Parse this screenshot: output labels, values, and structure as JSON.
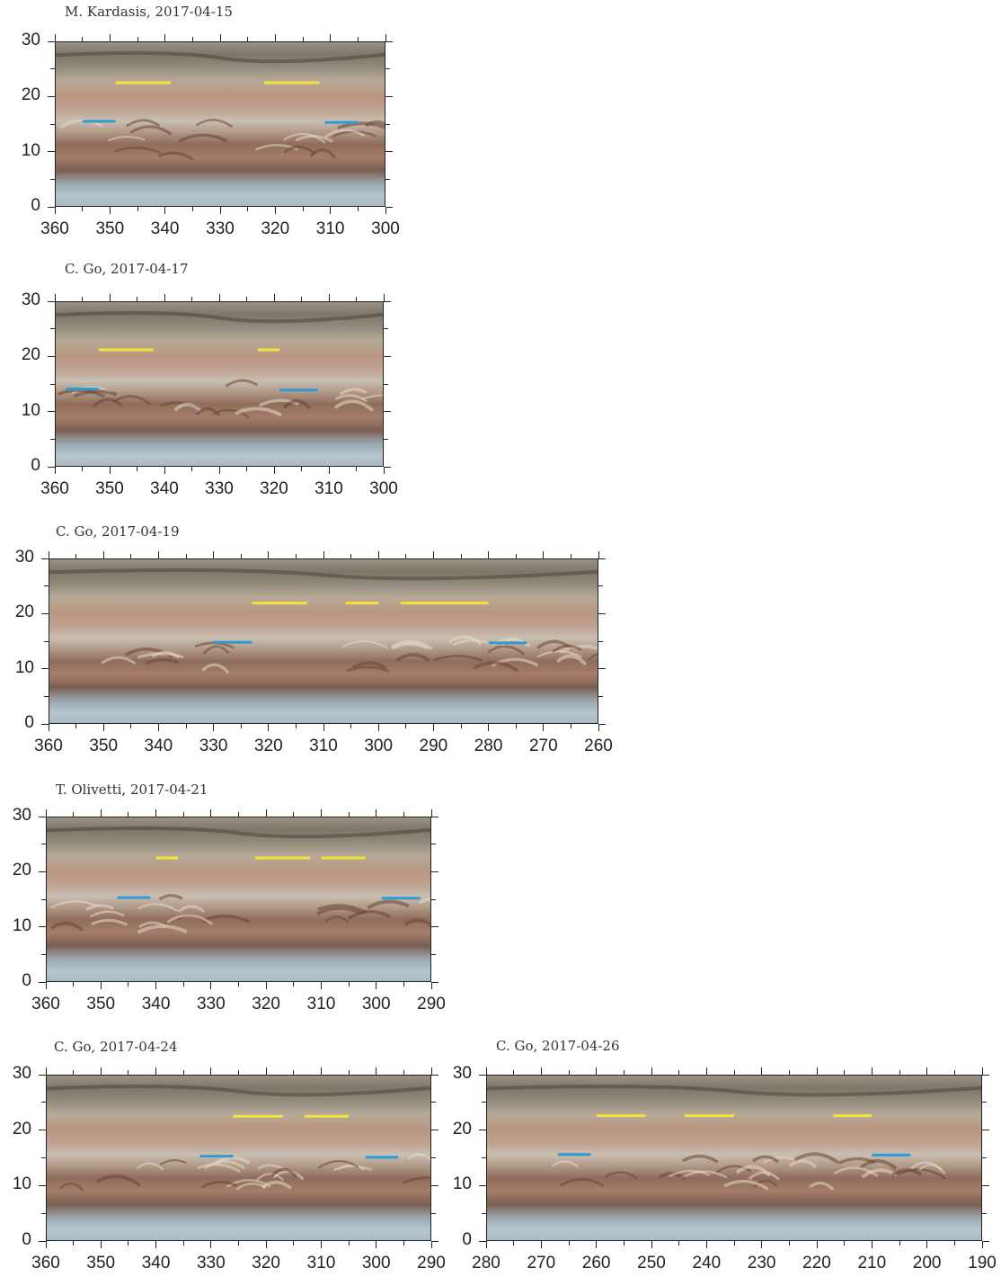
{
  "figure": {
    "panels": [
      {
        "title": "M. Kardasis, 2017-04-15",
        "xlim": [
          360,
          300
        ],
        "ylim": [
          0,
          30
        ],
        "xticks": [
          360,
          350,
          340,
          330,
          320,
          310,
          300
        ],
        "yticks": [
          0,
          10,
          20,
          30
        ],
        "yellow_segments": [
          [
            349,
            339,
            22.5
          ],
          [
            322,
            312,
            22.5
          ]
        ],
        "blue_segments": [
          [
            355,
            349,
            15.5
          ],
          [
            311,
            305,
            15.3
          ]
        ],
        "ribbon_features": true
      },
      {
        "title": "C. Go, 2017-04-17",
        "xlim": [
          360,
          300
        ],
        "ylim": [
          0,
          30
        ],
        "xticks": [
          360,
          350,
          340,
          330,
          320,
          310,
          300
        ],
        "yticks": [
          0,
          10,
          20,
          30
        ],
        "yellow_segments": [
          [
            352,
            342,
            21.2
          ],
          [
            323,
            319,
            21.2
          ]
        ],
        "blue_segments": [
          [
            358,
            352,
            14.1
          ],
          [
            319,
            312,
            13.9
          ]
        ],
        "ribbon_features": true
      },
      {
        "title": "C. Go, 2017-04-19",
        "xlim": [
          360,
          260
        ],
        "ylim": [
          0,
          30
        ],
        "xticks": [
          360,
          350,
          340,
          330,
          320,
          310,
          300,
          290,
          280,
          270,
          260
        ],
        "yticks": [
          0,
          10,
          20,
          30
        ],
        "yellow_segments": [
          [
            323,
            313,
            21.9
          ],
          [
            306,
            300,
            21.9
          ],
          [
            296,
            280,
            21.9
          ]
        ],
        "blue_segments": [
          [
            330,
            323,
            14.8
          ],
          [
            280,
            273,
            14.7
          ]
        ],
        "ribbon_features": true
      },
      {
        "title": "T. Olivetti, 2017-04-21",
        "xlim": [
          360,
          290
        ],
        "ylim": [
          0,
          30
        ],
        "xticks": [
          360,
          350,
          340,
          330,
          320,
          310,
          300,
          290
        ],
        "yticks": [
          0,
          10,
          20,
          30
        ],
        "yellow_segments": [
          [
            340,
            336,
            22.5
          ],
          [
            322,
            312,
            22.5
          ],
          [
            310,
            302,
            22.5
          ]
        ],
        "blue_segments": [
          [
            347,
            341,
            15.3
          ],
          [
            299,
            292,
            15.2
          ]
        ],
        "ribbon_features": true
      },
      {
        "title": "C. Go, 2017-04-24",
        "xlim": [
          360,
          290
        ],
        "ylim": [
          0,
          30
        ],
        "xticks": [
          360,
          350,
          340,
          330,
          320,
          310,
          300,
          290
        ],
        "yticks": [
          0,
          10,
          20,
          30
        ],
        "yellow_segments": [
          [
            326,
            317,
            22.5
          ],
          [
            313,
            305,
            22.5
          ]
        ],
        "blue_segments": [
          [
            332,
            326,
            15.3
          ],
          [
            302,
            296,
            15.1
          ]
        ],
        "ribbon_features": true
      },
      {
        "title": "C. Go, 2017-04-26",
        "xlim": [
          280,
          190
        ],
        "ylim": [
          0,
          30
        ],
        "xticks": [
          280,
          270,
          260,
          250,
          240,
          230,
          220,
          210,
          200,
          190
        ],
        "yticks": [
          0,
          10,
          20,
          30
        ],
        "yellow_segments": [
          [
            260,
            251,
            22.6
          ],
          [
            244,
            235,
            22.6
          ],
          [
            217,
            210,
            22.6
          ]
        ],
        "blue_segments": [
          [
            267,
            261,
            15.6
          ],
          [
            210,
            203,
            15.5
          ]
        ],
        "ribbon_features": true
      }
    ],
    "colors": {
      "yellow_marker": "#f2e23a",
      "blue_marker": "#2e9bd6",
      "axis": "#222222"
    }
  }
}
